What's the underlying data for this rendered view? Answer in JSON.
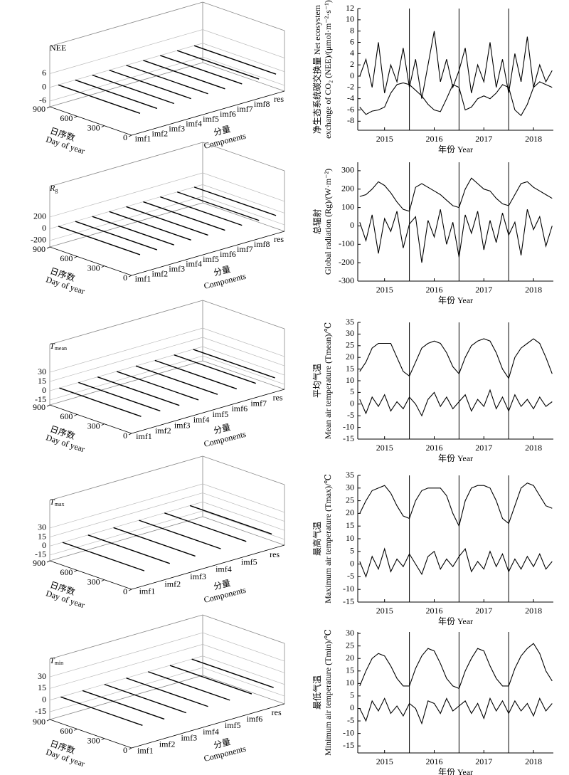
{
  "chart_data": [
    {
      "type": "components3d",
      "title": "NEE",
      "zlim": [
        -8.5,
        18
      ],
      "zticks": [
        -6,
        0,
        6
      ],
      "dlim": [
        0,
        900
      ],
      "dticks": [
        0,
        300,
        600,
        900
      ],
      "day_label": [
        "日序数",
        "Day of year"
      ],
      "components": [
        "imf1",
        "imf2",
        "imf3",
        "imf4",
        "imf5",
        "imf6",
        "imf7",
        "imf8",
        "res"
      ],
      "component_label": [
        "分量",
        "Components"
      ]
    },
    {
      "type": "line",
      "ylabel": [
        "净生态系统碳交换量 Net ecosystem",
        "exchange of CO₂ (NEE)/(μmol·m⁻²·s⁻¹)"
      ],
      "xlabel": "年份 Year",
      "x": [
        2014.5,
        2014.625,
        2014.75,
        2014.875,
        2015,
        2015.125,
        2015.25,
        2015.375,
        2015.5,
        2015.625,
        2015.75,
        2015.875,
        2016,
        2016.125,
        2016.25,
        2016.375,
        2016.5,
        2016.625,
        2016.75,
        2016.875,
        2017,
        2017.125,
        2017.25,
        2017.375,
        2017.5,
        2017.625,
        2017.75,
        2017.875,
        2018,
        2018.125,
        2018.25,
        2018.375
      ],
      "xlim": [
        2014.46,
        2018.4
      ],
      "xticks": [
        2015,
        2016,
        2017,
        2018
      ],
      "vlines": [
        2015.5,
        2016.5,
        2017.5
      ],
      "ylim": [
        -9.6,
        12
      ],
      "yticks": [
        -8,
        -6,
        -4,
        -2,
        0,
        2,
        4,
        6,
        8,
        10,
        12
      ],
      "series": [
        {
          "color": "#000000",
          "values": [
            -5.5,
            -6.8,
            -6.2,
            -6.0,
            -5.5,
            -3.0,
            -1.5,
            -1.2,
            -1.5,
            -2.5,
            -3.5,
            -5.0,
            -6.0,
            -6.3,
            -4.0,
            -1.5,
            -2.0,
            -6.0,
            -5.5,
            -4.0,
            -3.5,
            -4.0,
            -3.0,
            -1.5,
            -2.0,
            -6.0,
            -7.0,
            -5.0,
            -2.0,
            -1.0,
            -1.5,
            -2.0
          ]
        },
        {
          "color": "#000000",
          "values": [
            0,
            3,
            -2,
            6,
            -3,
            2,
            -1,
            5,
            -2,
            3,
            -4,
            2,
            8,
            -1,
            3,
            -2,
            1,
            5,
            -3,
            2,
            -1,
            6,
            -2,
            3,
            -3,
            4,
            -1,
            7,
            -2,
            2,
            -1,
            1
          ]
        }
      ]
    },
    {
      "type": "components3d",
      "title": "R",
      "title_sub": "g",
      "zlim": [
        -310,
        720
      ],
      "zticks": [
        -200,
        0,
        200
      ],
      "dlim": [
        0,
        900
      ],
      "dticks": [
        0,
        300,
        600,
        900
      ],
      "day_label": [
        "日序数",
        "Day of year"
      ],
      "components": [
        "imf1",
        "imf2",
        "imf3",
        "imf4",
        "imf5",
        "imf6",
        "imf7",
        "imf8",
        "res"
      ],
      "component_label": [
        "分量",
        "Components"
      ]
    },
    {
      "type": "line",
      "ylabel": [
        "总辐射",
        "Global radiation (Rg)/(W·m⁻²)"
      ],
      "xlabel": "年份 Year",
      "x": [
        2014.5,
        2014.625,
        2014.75,
        2014.875,
        2015,
        2015.125,
        2015.25,
        2015.375,
        2015.5,
        2015.625,
        2015.75,
        2015.875,
        2016,
        2016.125,
        2016.25,
        2016.375,
        2016.5,
        2016.625,
        2016.75,
        2016.875,
        2017,
        2017.125,
        2017.25,
        2017.375,
        2017.5,
        2017.625,
        2017.75,
        2017.875,
        2018,
        2018.125,
        2018.25,
        2018.375
      ],
      "xlim": [
        2014.46,
        2018.4
      ],
      "xticks": [
        2015,
        2016,
        2017,
        2018
      ],
      "vlines": [
        2015.5,
        2016.5,
        2017.5
      ],
      "ylim": [
        -300,
        346
      ],
      "yticks": [
        -300,
        -200,
        -100,
        0,
        100,
        200,
        300
      ],
      "series": [
        {
          "color": "#000000",
          "values": [
            160,
            170,
            200,
            240,
            220,
            180,
            130,
            90,
            80,
            210,
            230,
            210,
            190,
            170,
            140,
            110,
            100,
            200,
            260,
            230,
            200,
            190,
            150,
            120,
            110,
            170,
            230,
            240,
            210,
            190,
            170,
            150
          ]
        },
        {
          "color": "#000000",
          "values": [
            20,
            -80,
            60,
            -150,
            40,
            -30,
            80,
            -120,
            10,
            50,
            -200,
            30,
            -60,
            90,
            -100,
            20,
            -170,
            60,
            -40,
            80,
            -130,
            30,
            -90,
            70,
            -50,
            20,
            -160,
            90,
            -20,
            50,
            -110,
            0
          ]
        }
      ]
    },
    {
      "type": "components3d",
      "title": "T",
      "title_sub": "mean",
      "zlim": [
        -23,
        75
      ],
      "zticks": [
        -15,
        0,
        15,
        30
      ],
      "dlim": [
        0,
        900
      ],
      "dticks": [
        0,
        300,
        600,
        900
      ],
      "day_label": [
        "日序数",
        "Day of year"
      ],
      "components": [
        "imf1",
        "imf2",
        "imf3",
        "imf4",
        "imf5",
        "imf6",
        "imf7",
        "res"
      ],
      "component_label": [
        "分量",
        "Components"
      ]
    },
    {
      "type": "line",
      "ylabel": [
        "平均气温",
        "Mean air temperature (Tmean)/℃"
      ],
      "xlabel": "年份 Year",
      "x": [
        2014.5,
        2014.625,
        2014.75,
        2014.875,
        2015,
        2015.125,
        2015.25,
        2015.375,
        2015.5,
        2015.625,
        2015.75,
        2015.875,
        2016,
        2016.125,
        2016.25,
        2016.375,
        2016.5,
        2016.625,
        2016.75,
        2016.875,
        2017,
        2017.125,
        2017.25,
        2017.375,
        2017.5,
        2017.625,
        2017.75,
        2017.875,
        2018,
        2018.125,
        2018.25,
        2018.375
      ],
      "xlim": [
        2014.46,
        2018.4
      ],
      "xticks": [
        2015,
        2016,
        2017,
        2018
      ],
      "vlines": [
        2015.5,
        2016.5,
        2017.5
      ],
      "ylim": [
        -15,
        35
      ],
      "yticks": [
        -15,
        -10,
        -5,
        0,
        5,
        10,
        15,
        20,
        25,
        30,
        35
      ],
      "series": [
        {
          "color": "#000000",
          "values": [
            14,
            18,
            24,
            26,
            26,
            26,
            20,
            14,
            12,
            18,
            24,
            26,
            27,
            26,
            22,
            16,
            13,
            20,
            25,
            27,
            28,
            27,
            22,
            15,
            11,
            20,
            24,
            26,
            28,
            26,
            20,
            13
          ]
        },
        {
          "color": "#000000",
          "values": [
            2,
            -4,
            3,
            -1,
            4,
            -3,
            1,
            -2,
            3,
            0,
            -5,
            2,
            5,
            -1,
            3,
            -2,
            1,
            4,
            -3,
            2,
            -1,
            6,
            -2,
            3,
            -3,
            4,
            -1,
            2,
            -2,
            3,
            -1,
            1
          ]
        }
      ]
    },
    {
      "type": "components3d",
      "title": "T",
      "title_sub": "max",
      "zlim": [
        -24.5,
        76
      ],
      "zticks": [
        -15,
        0,
        15,
        30
      ],
      "dlim": [
        0,
        900
      ],
      "dticks": [
        0,
        300,
        600,
        900
      ],
      "day_label": [
        "日序数",
        "Day of year"
      ],
      "components": [
        "imf1",
        "imf2",
        "imf3",
        "imf4",
        "imf5",
        "res"
      ],
      "component_label": [
        "分量",
        "Components"
      ]
    },
    {
      "type": "line",
      "ylabel": [
        "最高气温",
        "Maximum air temperature (Tmax)/℃"
      ],
      "xlabel": "年份 Year",
      "x": [
        2014.5,
        2014.625,
        2014.75,
        2014.875,
        2015,
        2015.125,
        2015.25,
        2015.375,
        2015.5,
        2015.625,
        2015.75,
        2015.875,
        2016,
        2016.125,
        2016.25,
        2016.375,
        2016.5,
        2016.625,
        2016.75,
        2016.875,
        2017,
        2017.125,
        2017.25,
        2017.375,
        2017.5,
        2017.625,
        2017.75,
        2017.875,
        2018,
        2018.125,
        2018.25,
        2018.375
      ],
      "xlim": [
        2014.46,
        2018.4
      ],
      "xticks": [
        2015,
        2016,
        2017,
        2018
      ],
      "vlines": [
        2015.5,
        2016.5,
        2017.5
      ],
      "ylim": [
        -15,
        35
      ],
      "yticks": [
        -15,
        -10,
        -5,
        0,
        5,
        10,
        15,
        20,
        25,
        30,
        35
      ],
      "series": [
        {
          "color": "#000000",
          "values": [
            20,
            25,
            29,
            30,
            31,
            28,
            23,
            19,
            18,
            25,
            29,
            30,
            30,
            30,
            27,
            20,
            15,
            25,
            30,
            31,
            31,
            30,
            25,
            18,
            16,
            23,
            30,
            32,
            31,
            27,
            23,
            22
          ]
        },
        {
          "color": "#000000",
          "values": [
            1,
            -5,
            3,
            -2,
            6,
            -3,
            2,
            -1,
            4,
            0,
            -4,
            3,
            5,
            -2,
            2,
            -1,
            3,
            6,
            -3,
            1,
            -2,
            5,
            -1,
            4,
            -3,
            2,
            -2,
            3,
            -1,
            4,
            -2,
            1
          ]
        }
      ]
    },
    {
      "type": "components3d",
      "title": "T",
      "title_sub": "min",
      "zlim": [
        -25,
        53
      ],
      "zticks": [
        -15,
        0,
        15,
        30
      ],
      "dlim": [
        0,
        900
      ],
      "dticks": [
        0,
        300,
        600,
        900
      ],
      "day_label": [
        "日序数",
        "Day of year"
      ],
      "components": [
        "imf1",
        "imf2",
        "imf3",
        "imf4",
        "imf5",
        "imf6",
        "res"
      ],
      "component_label": [
        "分量",
        "Components"
      ]
    },
    {
      "type": "line",
      "ylabel": [
        "最低气温",
        "Minimum air temperature (Tmin)/℃"
      ],
      "xlabel": "年份 Year",
      "x": [
        2014.5,
        2014.625,
        2014.75,
        2014.875,
        2015,
        2015.125,
        2015.25,
        2015.375,
        2015.5,
        2015.625,
        2015.75,
        2015.875,
        2016,
        2016.125,
        2016.25,
        2016.375,
        2016.5,
        2016.625,
        2016.75,
        2016.875,
        2017,
        2017.125,
        2017.25,
        2017.375,
        2017.5,
        2017.625,
        2017.75,
        2017.875,
        2018,
        2018.125,
        2018.25,
        2018.375
      ],
      "xlim": [
        2014.46,
        2018.4
      ],
      "xticks": [
        2015,
        2016,
        2017,
        2018
      ],
      "vlines": [
        2015.5,
        2016.5,
        2017.5
      ],
      "ylim": [
        -17.8,
        30.6
      ],
      "yticks": [
        -15,
        -10,
        -5,
        0,
        5,
        10,
        15,
        20,
        25,
        30
      ],
      "series": [
        {
          "color": "#000000",
          "values": [
            9,
            15,
            20,
            22,
            21,
            17,
            12,
            9,
            9,
            16,
            21,
            24,
            23,
            18,
            12,
            9,
            8,
            15,
            20,
            24,
            23,
            17,
            12,
            9,
            9,
            16,
            21,
            24,
            26,
            22,
            15,
            11
          ]
        },
        {
          "color": "#000000",
          "values": [
            0,
            -5,
            3,
            -1,
            4,
            -2,
            1,
            -3,
            2,
            0,
            -6,
            3,
            2,
            -2,
            4,
            -1,
            1,
            3,
            -2,
            2,
            -4,
            4,
            -1,
            3,
            -2,
            3,
            -1,
            2,
            -3,
            4,
            -1,
            2
          ]
        }
      ]
    }
  ]
}
